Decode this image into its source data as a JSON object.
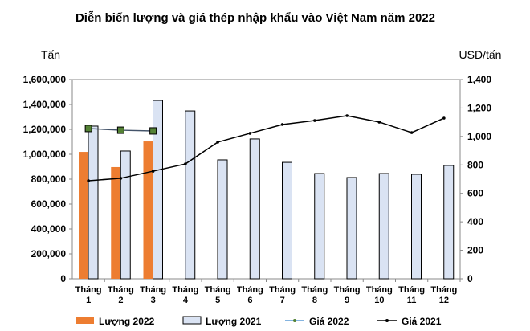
{
  "chart_data": {
    "type": "bar+line",
    "title": "Diễn biến lượng và giá thép nhập khẩu vào Việt Nam năm 2022",
    "ylabel_left": "Tấn",
    "ylabel_right": "USD/tấn",
    "categories": [
      [
        "Tháng",
        "1"
      ],
      [
        "Tháng",
        "2"
      ],
      [
        "Tháng",
        "3"
      ],
      [
        "Tháng",
        "4"
      ],
      [
        "Tháng",
        "5"
      ],
      [
        "Tháng",
        "6"
      ],
      [
        "Tháng",
        "7"
      ],
      [
        "Tháng",
        "8"
      ],
      [
        "Tháng",
        "9"
      ],
      [
        "Tháng",
        "10"
      ],
      [
        "Tháng",
        "11"
      ],
      [
        "Tháng",
        "12"
      ]
    ],
    "ylim_left": [
      0,
      1600000
    ],
    "yticks_left": [
      "0",
      "200,000",
      "400,000",
      "600,000",
      "800,000",
      "1,000,000",
      "1,200,000",
      "1,400,000",
      "1,600,000"
    ],
    "ylim_right": [
      0,
      1400
    ],
    "yticks_right": [
      "0",
      "200",
      "400",
      "600",
      "800",
      "1,000",
      "1,200",
      "1,400"
    ],
    "grid": false,
    "legend_position": "bottom",
    "series": [
      {
        "name": "Lượng 2022",
        "kind": "bar",
        "axis": "left",
        "color": "#ED7D31",
        "values": [
          1019000,
          897000,
          1103000,
          null,
          null,
          null,
          null,
          null,
          null,
          null,
          null,
          null
        ]
      },
      {
        "name": "Lượng 2021",
        "kind": "bar",
        "axis": "left",
        "color": "#DAE3F3",
        "values": [
          1226000,
          1026000,
          1432000,
          1348000,
          955000,
          1123000,
          935000,
          845000,
          813000,
          845000,
          839000,
          910000
        ]
      },
      {
        "name": "Giá 2022",
        "kind": "line",
        "axis": "right",
        "color": "#44546A",
        "marker_color": "#548235",
        "values": [
          1056,
          1044,
          1039,
          null,
          null,
          null,
          null,
          null,
          null,
          null,
          null,
          null
        ]
      },
      {
        "name": "Giá 2021",
        "kind": "line",
        "axis": "right",
        "color": "#000000",
        "values": [
          689,
          706,
          756,
          807,
          960,
          1022,
          1084,
          1112,
          1146,
          1101,
          1027,
          1129
        ]
      }
    ]
  }
}
